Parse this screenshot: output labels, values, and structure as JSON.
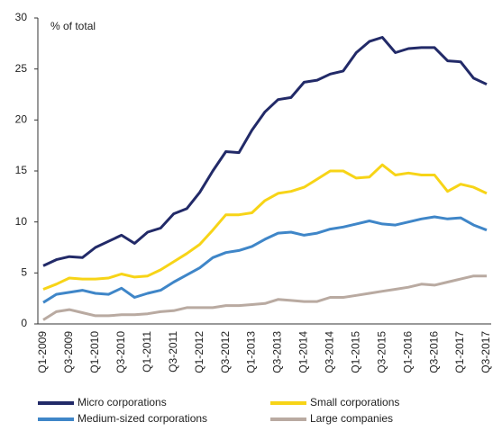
{
  "chart_data": {
    "type": "line",
    "annotation": "% of total",
    "categories": [
      "Q1-2009",
      null,
      "Q3-2009",
      null,
      "Q1-2010",
      null,
      "Q3-2010",
      null,
      "Q1-2011",
      null,
      "Q3-2011",
      null,
      "Q1-2012",
      null,
      "Q3-2012",
      null,
      "Q1-2013",
      null,
      "Q3-2013",
      null,
      "Q1-2014",
      null,
      "Q3-2014",
      null,
      "Q1-2015",
      null,
      "Q3-2015",
      null,
      "Q1-2016",
      null,
      "Q3-2016",
      null,
      "Q1-2017",
      null,
      "Q3-2017"
    ],
    "series": [
      {
        "name": "Micro corporations",
        "color": "#222a68",
        "values": [
          5.7,
          6.3,
          6.6,
          6.5,
          7.5,
          8.1,
          8.7,
          7.9,
          9.0,
          9.4,
          10.8,
          11.3,
          12.9,
          15.0,
          16.9,
          16.8,
          19.0,
          20.8,
          22.0,
          22.2,
          23.7,
          23.9,
          24.5,
          24.8,
          26.6,
          27.7,
          28.1,
          26.6,
          27.0,
          27.1,
          27.1,
          25.8,
          25.7,
          24.1,
          23.5
        ]
      },
      {
        "name": "Small corporations",
        "color": "#f7d417",
        "values": [
          3.4,
          3.9,
          4.5,
          4.4,
          4.4,
          4.5,
          4.9,
          4.6,
          4.7,
          5.3,
          6.1,
          6.9,
          7.8,
          9.2,
          10.7,
          10.7,
          10.9,
          12.1,
          12.8,
          13.0,
          13.4,
          14.2,
          15.0,
          15.0,
          14.3,
          14.4,
          15.6,
          14.6,
          14.8,
          14.6,
          14.6,
          13.0,
          13.7,
          13.4,
          12.8
        ]
      },
      {
        "name": "Medium-sized corporations",
        "color": "#3f86c8",
        "values": [
          2.1,
          2.9,
          3.1,
          3.3,
          3.0,
          2.9,
          3.5,
          2.6,
          3.0,
          3.3,
          4.1,
          4.8,
          5.5,
          6.5,
          7.0,
          7.2,
          7.6,
          8.3,
          8.9,
          9.0,
          8.7,
          8.9,
          9.3,
          9.5,
          9.8,
          10.1,
          9.8,
          9.7,
          10.0,
          10.3,
          10.5,
          10.3,
          10.4,
          9.7,
          9.2
        ]
      },
      {
        "name": "Large companies",
        "color": "#b9aaa1",
        "values": [
          0.4,
          1.2,
          1.4,
          1.1,
          0.8,
          0.8,
          0.9,
          0.9,
          1.0,
          1.2,
          1.3,
          1.6,
          1.6,
          1.6,
          1.8,
          1.8,
          1.9,
          2.0,
          2.4,
          2.3,
          2.2,
          2.2,
          2.6,
          2.6,
          2.8,
          3.0,
          3.2,
          3.4,
          3.6,
          3.9,
          3.8,
          4.1,
          4.4,
          4.7,
          4.7
        ]
      }
    ],
    "ylim": [
      0,
      30
    ],
    "yticks": [
      0,
      5,
      10,
      15,
      20,
      25,
      30
    ],
    "grid": false
  }
}
